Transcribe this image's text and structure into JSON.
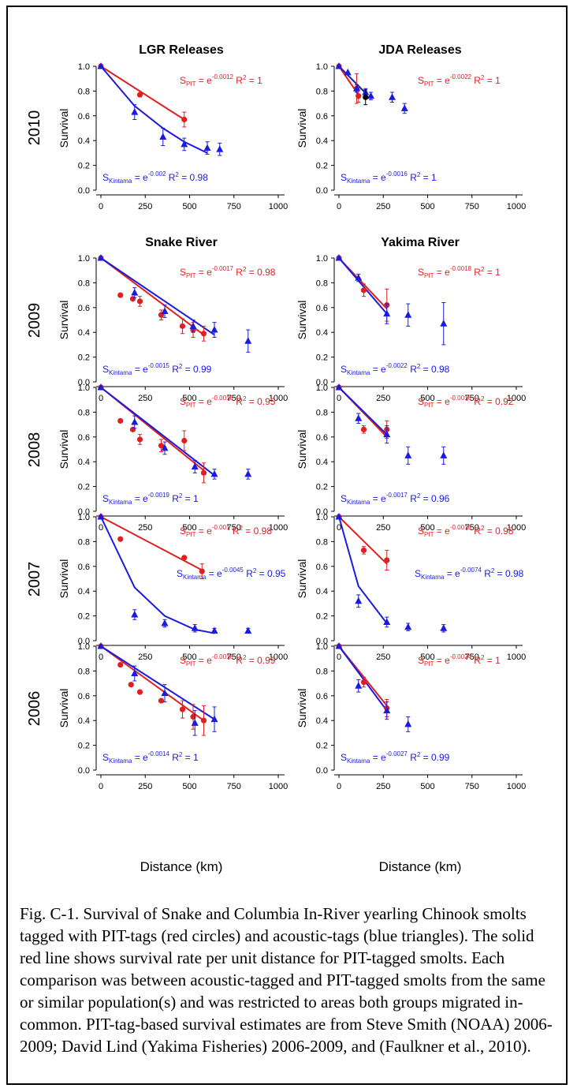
{
  "caption": "Fig. C-1.  Survival of Snake and Columbia In-River yearling Chinook smolts tagged with PIT-tags (red circles) and acoustic-tags (blue triangles).  The solid red line shows survival rate per unit distance for PIT-tagged smolts.  Each comparison was between acoustic-tagged and PIT-tagged smolts from the same or similar population(s) and was restricted to areas both groups migrated in-common.  PIT-tag-based survival estimates are from Steve Smith (NOAA) 2006-2009; David Lind (Yakima Fisheries) 2006-2009, and (Faulkner et al., 2010).",
  "colors": {
    "pit": "#e02020",
    "acoustic": "#1a1ae0",
    "black": "#000000"
  },
  "axis": {
    "ylabel": "Survival",
    "xlabel": "Distance (km)",
    "xticks": [
      "0",
      "250",
      "500",
      "750",
      "1000"
    ],
    "yticks": [
      "0.0",
      "0.2",
      "0.4",
      "0.6",
      "0.8",
      "1.0"
    ]
  },
  "column_titles": [
    "LGR Releases",
    "JDA Releases",
    "Snake River",
    "Yakima River"
  ],
  "row_years": [
    "2010",
    "2009",
    "2008",
    "2007",
    "2006"
  ],
  "chart_data": [
    {
      "type": "scatter",
      "row": 0,
      "col": 0,
      "xlim": [
        0,
        1000
      ],
      "ylim": [
        0,
        1.0
      ],
      "series": [
        {
          "name": "PIT",
          "marker": "circle",
          "color": "#e02020",
          "x": [
            0,
            220,
            470
          ],
          "y": [
            1.0,
            0.77,
            0.57
          ],
          "err": [
            0,
            0,
            0.06
          ],
          "fit_x": [
            0,
            470
          ],
          "fit_y": [
            1.0,
            0.57
          ]
        },
        {
          "name": "Acoustic",
          "marker": "triangle",
          "color": "#1a1ae0",
          "x": [
            0,
            190,
            350,
            470,
            600,
            670
          ],
          "y": [
            1.0,
            0.63,
            0.43,
            0.37,
            0.34,
            0.33
          ],
          "err": [
            0,
            0.06,
            0.07,
            0.05,
            0.05,
            0.05
          ],
          "fit_x": [
            0,
            190,
            350,
            470,
            600
          ],
          "fit_y": [
            1.0,
            0.68,
            0.5,
            0.39,
            0.3
          ]
        }
      ],
      "annotations": [
        {
          "sub": "PIT",
          "exp": "-0.0012",
          "r2": "= 1",
          "color": "#e02020",
          "pos": "top"
        },
        {
          "sub": "Kintama",
          "exp": "-0.002",
          "r2": "= 0.98",
          "color": "#1a1ae0",
          "pos": "bottom"
        }
      ]
    },
    {
      "type": "scatter",
      "row": 0,
      "col": 1,
      "xlim": [
        0,
        1000
      ],
      "ylim": [
        0,
        1.0
      ],
      "series": [
        {
          "name": "PIT",
          "marker": "circle",
          "color": "#e02020",
          "x": [
            0,
            100,
            110
          ],
          "y": [
            1.0,
            0.82,
            0.76
          ],
          "err": [
            0,
            0.12,
            0.05
          ],
          "fit_x": [
            0,
            110
          ],
          "fit_y": [
            1.0,
            0.77
          ]
        },
        {
          "name": "Acoustic",
          "marker": "triangle",
          "color": "#1a1ae0",
          "x": [
            0,
            50,
            100,
            150,
            180,
            300,
            370
          ],
          "y": [
            1.0,
            0.95,
            0.82,
            0.79,
            0.76,
            0.75,
            0.66
          ],
          "err": [
            0,
            0,
            0.03,
            0.03,
            0.03,
            0.04,
            0.04
          ],
          "fit_x": [
            0,
            160
          ],
          "fit_y": [
            1.0,
            0.77
          ]
        },
        {
          "name": "Other",
          "marker": "circle",
          "color": "#000000",
          "x": [
            150
          ],
          "y": [
            0.75
          ],
          "err": [
            0.06
          ],
          "fit_x": [],
          "fit_y": []
        }
      ],
      "annotations": [
        {
          "sub": "PIT",
          "exp": "-0.0022",
          "r2": "= 1",
          "color": "#e02020",
          "pos": "top"
        },
        {
          "sub": "Kintama",
          "exp": "-0.0016",
          "r2": "= 1",
          "color": "#1a1ae0",
          "pos": "bottom"
        }
      ]
    },
    {
      "type": "scatter",
      "row": 1,
      "col": 0,
      "xlim": [
        0,
        1000
      ],
      "ylim": [
        0,
        1.0
      ],
      "series": [
        {
          "name": "PIT",
          "marker": "circle",
          "color": "#e02020",
          "x": [
            0,
            110,
            180,
            220,
            340,
            460,
            520,
            580
          ],
          "y": [
            1.0,
            0.7,
            0.67,
            0.65,
            0.54,
            0.45,
            0.42,
            0.39
          ],
          "err": [
            0,
            0,
            0,
            0.04,
            0.04,
            0.06,
            0.06,
            0.06
          ],
          "fit_x": [
            0,
            580
          ],
          "fit_y": [
            1.0,
            0.38
          ]
        },
        {
          "name": "Acoustic",
          "marker": "triangle",
          "color": "#1a1ae0",
          "x": [
            0,
            190,
            360,
            520,
            640,
            830
          ],
          "y": [
            1.0,
            0.72,
            0.57,
            0.45,
            0.42,
            0.33
          ],
          "err": [
            0,
            0.04,
            0.05,
            0.05,
            0.06,
            0.09
          ],
          "fit_x": [
            0,
            640
          ],
          "fit_y": [
            1.0,
            0.38
          ]
        }
      ],
      "annotations": [
        {
          "sub": "PIT",
          "exp": "-0.0017",
          "r2": "= 0.98",
          "color": "#e02020",
          "pos": "top"
        },
        {
          "sub": "Kintama",
          "exp": "-0.0015",
          "r2": "= 0.99",
          "color": "#1a1ae0",
          "pos": "bottom"
        }
      ]
    },
    {
      "type": "scatter",
      "row": 1,
      "col": 1,
      "xlim": [
        0,
        1000
      ],
      "ylim": [
        0,
        1.0
      ],
      "series": [
        {
          "name": "PIT",
          "marker": "circle",
          "color": "#e02020",
          "x": [
            0,
            140,
            270
          ],
          "y": [
            1.0,
            0.74,
            0.62
          ],
          "err": [
            0,
            0.05,
            0.13
          ],
          "fit_x": [
            0,
            270
          ],
          "fit_y": [
            1.0,
            0.59
          ]
        },
        {
          "name": "Acoustic",
          "marker": "triangle",
          "color": "#1a1ae0",
          "x": [
            0,
            110,
            270,
            390,
            590
          ],
          "y": [
            1.0,
            0.84,
            0.55,
            0.54,
            0.47
          ],
          "err": [
            0,
            0.03,
            0.08,
            0.09,
            0.17
          ],
          "fit_x": [
            0,
            270
          ],
          "fit_y": [
            1.0,
            0.55
          ]
        }
      ],
      "annotations": [
        {
          "sub": "PIT",
          "exp": "-0.0018",
          "r2": "= 1",
          "color": "#e02020",
          "pos": "top"
        },
        {
          "sub": "Kintama",
          "exp": "-0.0022",
          "r2": "= 0.98",
          "color": "#1a1ae0",
          "pos": "bottom"
        }
      ]
    },
    {
      "type": "scatter",
      "row": 2,
      "col": 0,
      "xlim": [
        0,
        1000
      ],
      "ylim": [
        0,
        1.0
      ],
      "series": [
        {
          "name": "PIT",
          "marker": "circle",
          "color": "#e02020",
          "x": [
            0,
            110,
            180,
            220,
            340,
            470,
            580
          ],
          "y": [
            1.0,
            0.73,
            0.66,
            0.58,
            0.53,
            0.57,
            0.31
          ],
          "err": [
            0,
            0,
            0,
            0.04,
            0.05,
            0.08,
            0.08
          ],
          "fit_x": [
            0,
            580
          ],
          "fit_y": [
            1.0,
            0.33
          ]
        },
        {
          "name": "Acoustic",
          "marker": "triangle",
          "color": "#1a1ae0",
          "x": [
            0,
            190,
            360,
            530,
            640,
            830
          ],
          "y": [
            1.0,
            0.72,
            0.51,
            0.36,
            0.3,
            0.3
          ],
          "err": [
            0,
            0.05,
            0.05,
            0.05,
            0.04,
            0.04
          ],
          "fit_x": [
            0,
            640
          ],
          "fit_y": [
            1.0,
            0.29
          ]
        }
      ],
      "annotations": [
        {
          "sub": "PIT",
          "exp": "-0.0018",
          "r2": "= 0.95",
          "color": "#e02020",
          "pos": "top"
        },
        {
          "sub": "Kintama",
          "exp": "-0.0019",
          "r2": "= 1",
          "color": "#1a1ae0",
          "pos": "bottom"
        }
      ]
    },
    {
      "type": "scatter",
      "row": 2,
      "col": 1,
      "xlim": [
        0,
        1000
      ],
      "ylim": [
        0,
        1.0
      ],
      "series": [
        {
          "name": "PIT",
          "marker": "circle",
          "color": "#e02020",
          "x": [
            0,
            140,
            270
          ],
          "y": [
            1.0,
            0.66,
            0.66
          ],
          "err": [
            0,
            0.03,
            0.07
          ],
          "fit_x": [
            0,
            270
          ],
          "fit_y": [
            1.0,
            0.6
          ]
        },
        {
          "name": "Acoustic",
          "marker": "triangle",
          "color": "#1a1ae0",
          "x": [
            0,
            110,
            270,
            390,
            590
          ],
          "y": [
            1.0,
            0.75,
            0.62,
            0.45,
            0.45
          ],
          "err": [
            0,
            0.04,
            0.07,
            0.07,
            0.07
          ],
          "fit_x": [
            0,
            270
          ],
          "fit_y": [
            1.0,
            0.62
          ]
        }
      ],
      "annotations": [
        {
          "sub": "PIT",
          "exp": "-0.0018",
          "r2": "= 0.92",
          "color": "#e02020",
          "pos": "top"
        },
        {
          "sub": "Kintama",
          "exp": "-0.0017",
          "r2": "= 0.96",
          "color": "#1a1ae0",
          "pos": "bottom"
        }
      ]
    },
    {
      "type": "scatter",
      "row": 3,
      "col": 0,
      "xlim": [
        0,
        1000
      ],
      "ylim": [
        0,
        1.0
      ],
      "series": [
        {
          "name": "PIT",
          "marker": "circle",
          "color": "#e02020",
          "x": [
            0,
            110,
            470,
            570
          ],
          "y": [
            1.0,
            0.82,
            0.67,
            0.56
          ],
          "err": [
            0,
            0,
            0,
            0.06
          ],
          "fit_x": [
            0,
            570
          ],
          "fit_y": [
            1.0,
            0.57
          ]
        },
        {
          "name": "Acoustic",
          "marker": "triangle",
          "color": "#1a1ae0",
          "x": [
            0,
            190,
            360,
            530,
            640,
            830
          ],
          "y": [
            1.0,
            0.21,
            0.14,
            0.1,
            0.08,
            0.08
          ],
          "err": [
            0,
            0.04,
            0.03,
            0.03,
            0.02,
            0.02
          ],
          "fit_x": [
            0,
            190,
            360,
            530,
            640
          ],
          "fit_y": [
            1.0,
            0.43,
            0.2,
            0.09,
            0.06
          ]
        }
      ],
      "annotations": [
        {
          "sub": "PIT",
          "exp": "-0.001",
          "r2": "= 0.98",
          "color": "#e02020",
          "pos": "top"
        },
        {
          "sub": "Kintama",
          "exp": "-0.0045",
          "r2": "= 0.95",
          "color": "#1a1ae0",
          "pos": "mid"
        }
      ]
    },
    {
      "type": "scatter",
      "row": 3,
      "col": 1,
      "xlim": [
        0,
        1000
      ],
      "ylim": [
        0,
        1.0
      ],
      "series": [
        {
          "name": "PIT",
          "marker": "circle",
          "color": "#e02020",
          "x": [
            0,
            140,
            270
          ],
          "y": [
            1.0,
            0.73,
            0.65
          ],
          "err": [
            0,
            0.03,
            0.08
          ],
          "fit_x": [
            0,
            270
          ],
          "fit_y": [
            1.0,
            0.62
          ]
        },
        {
          "name": "Acoustic",
          "marker": "triangle",
          "color": "#1a1ae0",
          "x": [
            0,
            110,
            270,
            390,
            590
          ],
          "y": [
            1.0,
            0.32,
            0.15,
            0.11,
            0.1
          ],
          "err": [
            0,
            0.05,
            0.04,
            0.03,
            0.03
          ],
          "fit_x": [
            0,
            110,
            270
          ],
          "fit_y": [
            1.0,
            0.44,
            0.14
          ]
        }
      ],
      "annotations": [
        {
          "sub": "PIT",
          "exp": "-0.0018",
          "r2": "= 0.98",
          "color": "#e02020",
          "pos": "top"
        },
        {
          "sub": "Kintama",
          "exp": "-0.0074",
          "r2": "= 0.98",
          "color": "#1a1ae0",
          "pos": "mid"
        }
      ]
    },
    {
      "type": "scatter",
      "row": 4,
      "col": 0,
      "xlim": [
        0,
        1000
      ],
      "ylim": [
        0,
        1.0
      ],
      "series": [
        {
          "name": "PIT",
          "marker": "circle",
          "color": "#e02020",
          "x": [
            0,
            110,
            170,
            220,
            340,
            460,
            520,
            580
          ],
          "y": [
            1.0,
            0.85,
            0.69,
            0.63,
            0.56,
            0.49,
            0.43,
            0.4
          ],
          "err": [
            0,
            0,
            0,
            0,
            0,
            0.07,
            0.1,
            0.12
          ],
          "fit_x": [
            0,
            580
          ],
          "fit_y": [
            1.0,
            0.4
          ]
        },
        {
          "name": "Acoustic",
          "marker": "triangle",
          "color": "#1a1ae0",
          "x": [
            0,
            190,
            360,
            530,
            640
          ],
          "y": [
            1.0,
            0.78,
            0.62,
            0.38,
            0.41
          ],
          "err": [
            0,
            0.06,
            0.07,
            0.1,
            0.1
          ],
          "fit_x": [
            0,
            640
          ],
          "fit_y": [
            1.0,
            0.41
          ]
        }
      ],
      "annotations": [
        {
          "sub": "PIT",
          "exp": "-0.0016",
          "r2": "= 0.99",
          "color": "#e02020",
          "pos": "top"
        },
        {
          "sub": "Kintama",
          "exp": "-0.0014",
          "r2": "= 1",
          "color": "#1a1ae0",
          "pos": "bottom"
        }
      ]
    },
    {
      "type": "scatter",
      "row": 4,
      "col": 1,
      "xlim": [
        0,
        1000
      ],
      "ylim": [
        0,
        1.0
      ],
      "series": [
        {
          "name": "PIT",
          "marker": "circle",
          "color": "#e02020",
          "x": [
            0,
            140,
            270
          ],
          "y": [
            1.0,
            0.71,
            0.5
          ],
          "err": [
            0,
            0.04,
            0.07
          ],
          "fit_x": [
            0,
            270
          ],
          "fit_y": [
            1.0,
            0.52
          ]
        },
        {
          "name": "Acoustic",
          "marker": "triangle",
          "color": "#1a1ae0",
          "x": [
            0,
            110,
            270,
            390
          ],
          "y": [
            1.0,
            0.68,
            0.48,
            0.37
          ],
          "err": [
            0,
            0.05,
            0.07,
            0.06
          ],
          "fit_x": [
            0,
            270
          ],
          "fit_y": [
            1.0,
            0.48
          ]
        }
      ],
      "annotations": [
        {
          "sub": "PIT",
          "exp": "-0.0024",
          "r2": "= 1",
          "color": "#e02020",
          "pos": "top"
        },
        {
          "sub": "Kintama",
          "exp": "-0.0027",
          "r2": "= 0.99",
          "color": "#1a1ae0",
          "pos": "bottom"
        }
      ]
    }
  ]
}
